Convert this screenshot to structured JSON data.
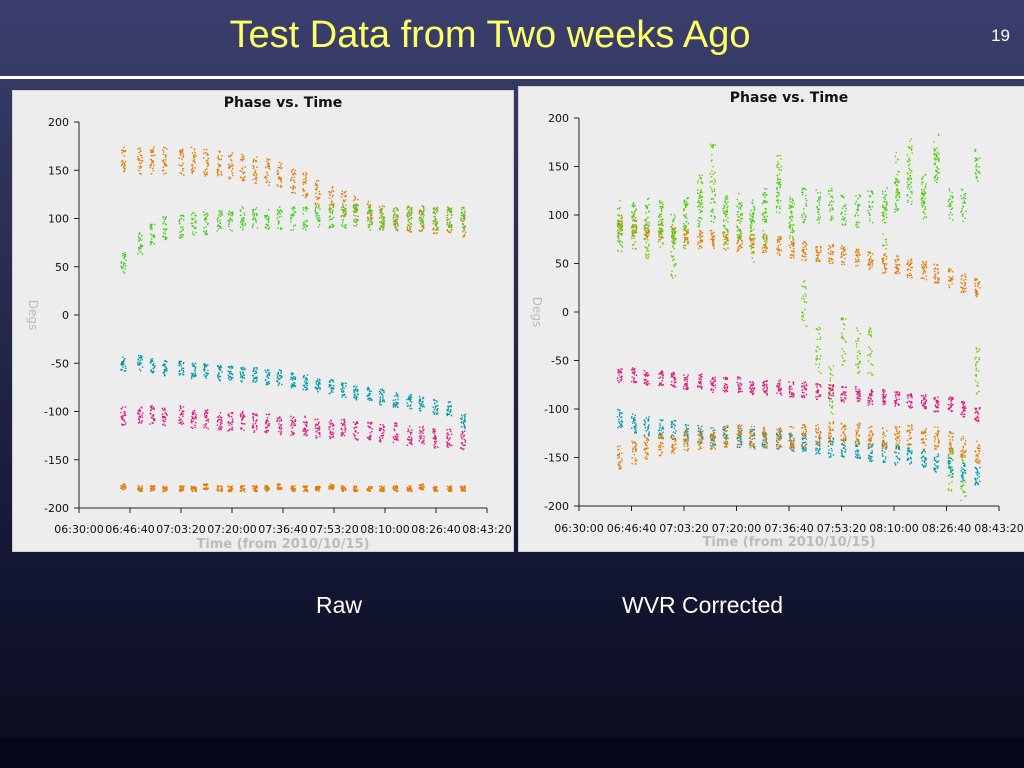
{
  "slide": {
    "title": "Test Data from Two weeks Ago",
    "number": "19",
    "title_color": "#ffff66"
  },
  "captions": {
    "left": "Raw",
    "right": "WVR Corrected"
  },
  "series_colors": [
    "#e07b00",
    "#44cc22",
    "#0099aa",
    "#dd1a7a",
    "#66cc00"
  ],
  "chart_data": [
    {
      "type": "scatter",
      "title": "Phase vs. Time",
      "xlabel": "Time (from 2010/10/15)",
      "ylabel": "Degs",
      "ylim": [
        -200,
        200
      ],
      "yticks": [
        200,
        150,
        100,
        50,
        0,
        -50,
        -100,
        -150,
        -200
      ],
      "xticks": [
        "06:30:00",
        "06:46:40",
        "07:03:20",
        "07:20:00",
        "07:36:40",
        "07:53:20",
        "08:10:00",
        "08:26:40",
        "08:43:20"
      ],
      "xlim_min": [
        0,
        133.33
      ],
      "grid": false,
      "scan_times_min": [
        14.5,
        20.0,
        24.0,
        28.0,
        33.5,
        37.5,
        41.5,
        46.0,
        49.5,
        53.5,
        57.5,
        61.5,
        65.5,
        70.0,
        74.0,
        78.0,
        82.5,
        86.5,
        90.5,
        95.0,
        99.0,
        103.5,
        108.0,
        112.0,
        116.5,
        121.0,
        125.5
      ],
      "series": [
        {
          "color_index": 0,
          "values": [
            160,
            160,
            160,
            160,
            158,
            160,
            158,
            157,
            155,
            153,
            150,
            148,
            145,
            140,
            135,
            128,
            120,
            115,
            110,
            105,
            100,
            100,
            100,
            100,
            98,
            97,
            95
          ],
          "spread": 14
        },
        {
          "color_index": 1,
          "values": [
            55,
            75,
            85,
            90,
            92,
            95,
            95,
            97,
            98,
            100,
            100,
            100,
            100,
            100,
            100,
            102,
            102,
            102,
            102,
            100,
            100,
            100,
            100,
            100,
            100,
            100,
            100
          ],
          "spread": 12
        },
        {
          "color_index": 2,
          "values": [
            -50,
            -50,
            -52,
            -55,
            -55,
            -58,
            -58,
            -60,
            -60,
            -62,
            -62,
            -65,
            -65,
            -68,
            -70,
            -72,
            -75,
            -78,
            -80,
            -82,
            -85,
            -88,
            -90,
            -92,
            -95,
            -98,
            -110
          ],
          "spread": 8
        },
        {
          "color_index": 3,
          "values": [
            -105,
            -102,
            -103,
            -105,
            -104,
            -108,
            -108,
            -110,
            -110,
            -110,
            -112,
            -112,
            -115,
            -115,
            -115,
            -118,
            -118,
            -118,
            -120,
            -120,
            -122,
            -122,
            -125,
            -125,
            -128,
            -128,
            -130
          ],
          "spread": 10
        },
        {
          "color_index": 0,
          "values": [
            -178,
            -180,
            -180,
            -180,
            -180,
            -180,
            -178,
            -180,
            -180,
            -180,
            -180,
            -180,
            -178,
            -180,
            -180,
            -180,
            -178,
            -180,
            -180,
            -180,
            -180,
            -180,
            -180,
            -178,
            -180,
            -180,
            -180
          ],
          "spread": 3
        }
      ]
    },
    {
      "type": "scatter",
      "title": "Phase vs. Time",
      "xlabel": "Time (from 2010/10/15)",
      "ylabel": "Degs",
      "ylim": [
        -200,
        200
      ],
      "yticks": [
        200,
        150,
        100,
        50,
        0,
        -50,
        -100,
        -150,
        -200
      ],
      "xticks": [
        "06:30:00",
        "06:46:40",
        "07:03:20",
        "07:20:00",
        "07:36:40",
        "07:53:20",
        "08:10:00",
        "08:26:40",
        "08:43:20"
      ],
      "xlim_min": [
        0,
        133.33
      ],
      "grid": false,
      "scan_times_min": [
        13.0,
        17.5,
        21.5,
        26.0,
        30.0,
        34.0,
        38.5,
        42.5,
        46.5,
        51.0,
        55.0,
        59.0,
        63.5,
        67.5,
        71.5,
        76.0,
        80.0,
        84.0,
        88.5,
        92.5,
        97.0,
        101.0,
        105.0,
        109.5,
        113.5,
        118.0,
        122.0,
        126.5
      ],
      "series": [
        {
          "color_index": 0,
          "values": [
            90,
            88,
            85,
            83,
            80,
            78,
            75,
            75,
            73,
            72,
            70,
            70,
            68,
            65,
            63,
            62,
            60,
            58,
            55,
            52,
            50,
            48,
            45,
            42,
            40,
            35,
            30,
            25
          ],
          "spread": 10
        },
        {
          "color_index": 1,
          "values": [
            80,
            95,
            100,
            95,
            85,
            100,
            105,
            110,
            100,
            95,
            100,
            110,
            120,
            100,
            110,
            108,
            110,
            105,
            105,
            110,
            115,
            120,
            125,
            110,
            150,
            110,
            110,
            150
          ],
          "spread": 18
        },
        {
          "color_index": 4,
          "values": [
            90,
            90,
            80,
            90,
            60,
            90,
            120,
            150,
            95,
            100,
            75,
            90,
            140,
            100,
            10,
            -40,
            -80,
            -30,
            -40,
            -40,
            90,
            140,
            160,
            120,
            160,
            -160,
            -170,
            -60
          ],
          "spread": 25
        },
        {
          "color_index": 3,
          "values": [
            -65,
            -65,
            -68,
            -68,
            -70,
            -72,
            -72,
            -75,
            -75,
            -75,
            -78,
            -78,
            -78,
            -80,
            -80,
            -82,
            -82,
            -85,
            -85,
            -88,
            -88,
            -90,
            -92,
            -92,
            -95,
            -95,
            -100,
            -105
          ],
          "spread": 8
        },
        {
          "color_index": 2,
          "values": [
            -110,
            -115,
            -118,
            -120,
            -122,
            -125,
            -125,
            -128,
            -128,
            -130,
            -130,
            -132,
            -132,
            -135,
            -135,
            -138,
            -140,
            -140,
            -142,
            -145,
            -145,
            -148,
            -150,
            -152,
            -155,
            -160,
            -165,
            -170
          ],
          "spread": 10
        },
        {
          "color_index": 0,
          "values": [
            -150,
            -145,
            -140,
            -138,
            -135,
            -132,
            -130,
            -130,
            -128,
            -128,
            -130,
            -130,
            -130,
            -130,
            -128,
            -125,
            -125,
            -125,
            -125,
            -130,
            -130,
            -130,
            -128,
            -130,
            -130,
            -135,
            -140,
            -145
          ],
          "spread": 12
        }
      ]
    }
  ]
}
